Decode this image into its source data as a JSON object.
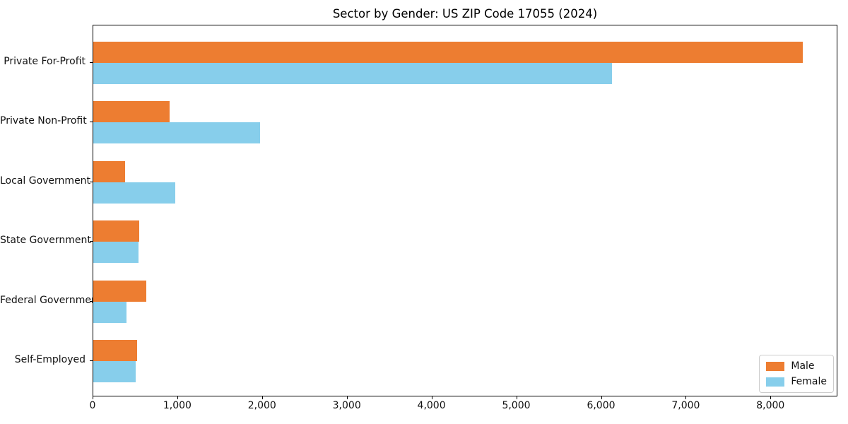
{
  "title": "Sector by Gender: US ZIP Code 17055 (2024)",
  "colors": {
    "male": "#ed7d31",
    "female": "#87ceeb",
    "spine": "#000000",
    "legend_border": "#cccccc"
  },
  "legend": {
    "items": [
      {
        "label": "Male",
        "color": "#ed7d31"
      },
      {
        "label": "Female",
        "color": "#87ceeb"
      }
    ]
  },
  "chart_data": {
    "type": "bar",
    "orientation": "horizontal",
    "title": "Sector by Gender: US ZIP Code 17055 (2024)",
    "categories": [
      "Private For-Profit",
      "Private Non-Profit",
      "Local Government",
      "State Government",
      "Federal Government",
      "Self-Employed"
    ],
    "series": [
      {
        "name": "Male",
        "color": "#ed7d31",
        "values": [
          8370,
          900,
          375,
          540,
          625,
          515
        ]
      },
      {
        "name": "Female",
        "color": "#87ceeb",
        "values": [
          6120,
          1970,
          965,
          535,
          390,
          500
        ]
      }
    ],
    "xlabel": "",
    "ylabel": "",
    "xlim": [
      0,
      8790
    ],
    "x_ticks": [
      0,
      1000,
      2000,
      3000,
      4000,
      5000,
      6000,
      7000,
      8000
    ],
    "x_tick_labels": [
      "0",
      "1,000",
      "2,000",
      "3,000",
      "4,000",
      "5,000",
      "6,000",
      "7,000",
      "8,000"
    ],
    "grid": false,
    "legend_position": "lower right"
  }
}
